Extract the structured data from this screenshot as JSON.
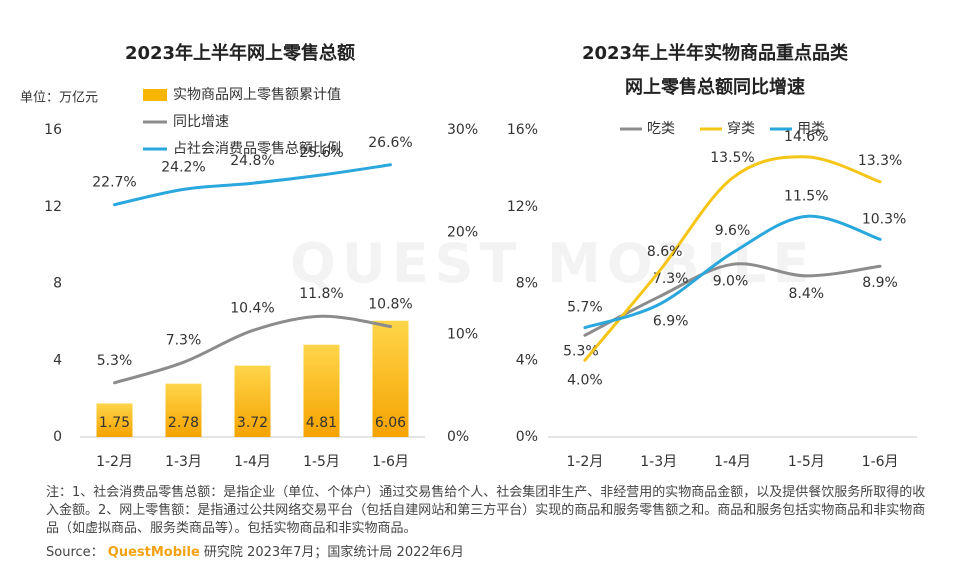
{
  "left_title": "2023年上半年网上零售总额",
  "right_title_line1": "2023年上半年实物商品重点品类",
  "right_title_line2": "网上零售总额同比增速",
  "watermark_text": "QUEST MOBILE",
  "notes": "注：1、社会消费品零售总额：是指企业（单位、个体户）通过交易售给个人、社会集团非生产、非经营用的实物商品金额，以及提供餐饮服务所取得的收入金额。2、网上零售额：是指通过公共网络交易平台（包括自建网站和第三方平台）实现的商品和服务零售额之和。商品和服务包括实物商品和非实物商品（如虚拟商品、服务类商品等）。包括实物商品和非实物商品。",
  "source": {
    "label": "Source：",
    "brand": "QuestMobile",
    "rest": "研究院 2023年7月；国家统计局 2022年6月"
  },
  "chart_data": [
    {
      "type": "bar",
      "title": "2023年上半年网上零售总额",
      "unit_label": "单位：万亿元",
      "categories": [
        "1-2月",
        "1-3月",
        "1-4月",
        "1-5月",
        "1-6月"
      ],
      "y_ticks": [
        "0",
        "4",
        "8",
        "12",
        "16"
      ],
      "y2_ticks": [
        "0%",
        "10%",
        "20%",
        "30%"
      ],
      "ylim": [
        0,
        16
      ],
      "y2lim": [
        0,
        30
      ],
      "legend_position": "top-left",
      "series": [
        {
          "name": "实物商品网上零售额累计值",
          "kind": "bar",
          "axis": "left",
          "color": "#f7b500",
          "values": [
            1.75,
            2.78,
            3.72,
            4.81,
            6.06
          ],
          "labels": [
            "1.75",
            "2.78",
            "3.72",
            "4.81",
            "6.06"
          ]
        },
        {
          "name": "同比增速",
          "kind": "line",
          "axis": "right",
          "color": "#8c8c8c",
          "values": [
            5.3,
            7.3,
            10.4,
            11.8,
            10.8
          ],
          "labels": [
            "5.3%",
            "7.3%",
            "10.4%",
            "11.8%",
            "10.8%"
          ]
        },
        {
          "name": "占社会消费品零售总额比例",
          "kind": "line",
          "axis": "right",
          "color": "#2aa7dc",
          "values": [
            22.7,
            24.2,
            24.8,
            25.6,
            26.6
          ],
          "labels": [
            "22.7%",
            "24.2%",
            "24.8%",
            "25.6%",
            "26.6%"
          ]
        }
      ]
    },
    {
      "type": "line",
      "title": "2023年上半年实物商品重点品类网上零售总额同比增速",
      "categories": [
        "1-2月",
        "1-3月",
        "1-4月",
        "1-5月",
        "1-6月"
      ],
      "y_ticks": [
        "0%",
        "4%",
        "8%",
        "12%",
        "16%"
      ],
      "ylim": [
        0,
        16
      ],
      "legend_position": "top",
      "series": [
        {
          "name": "吃类",
          "color": "#8c8c8c",
          "values": [
            5.3,
            7.3,
            9.0,
            8.4,
            8.9
          ],
          "labels": [
            "5.3%",
            "7.3%",
            "9.0%",
            "8.4%",
            "8.9%"
          ]
        },
        {
          "name": "穿类",
          "color": "#f5c518",
          "values": [
            4.0,
            8.6,
            13.5,
            14.6,
            13.3
          ],
          "labels": [
            "4.0%",
            "8.6%",
            "13.5%",
            "14.6%",
            "13.3%"
          ]
        },
        {
          "name": "用类",
          "color": "#2aa7dc",
          "values": [
            5.7,
            6.9,
            9.6,
            11.5,
            10.3
          ],
          "labels": [
            "5.7%",
            "6.9%",
            "9.6%",
            "11.5%",
            "10.3%"
          ]
        }
      ]
    }
  ]
}
